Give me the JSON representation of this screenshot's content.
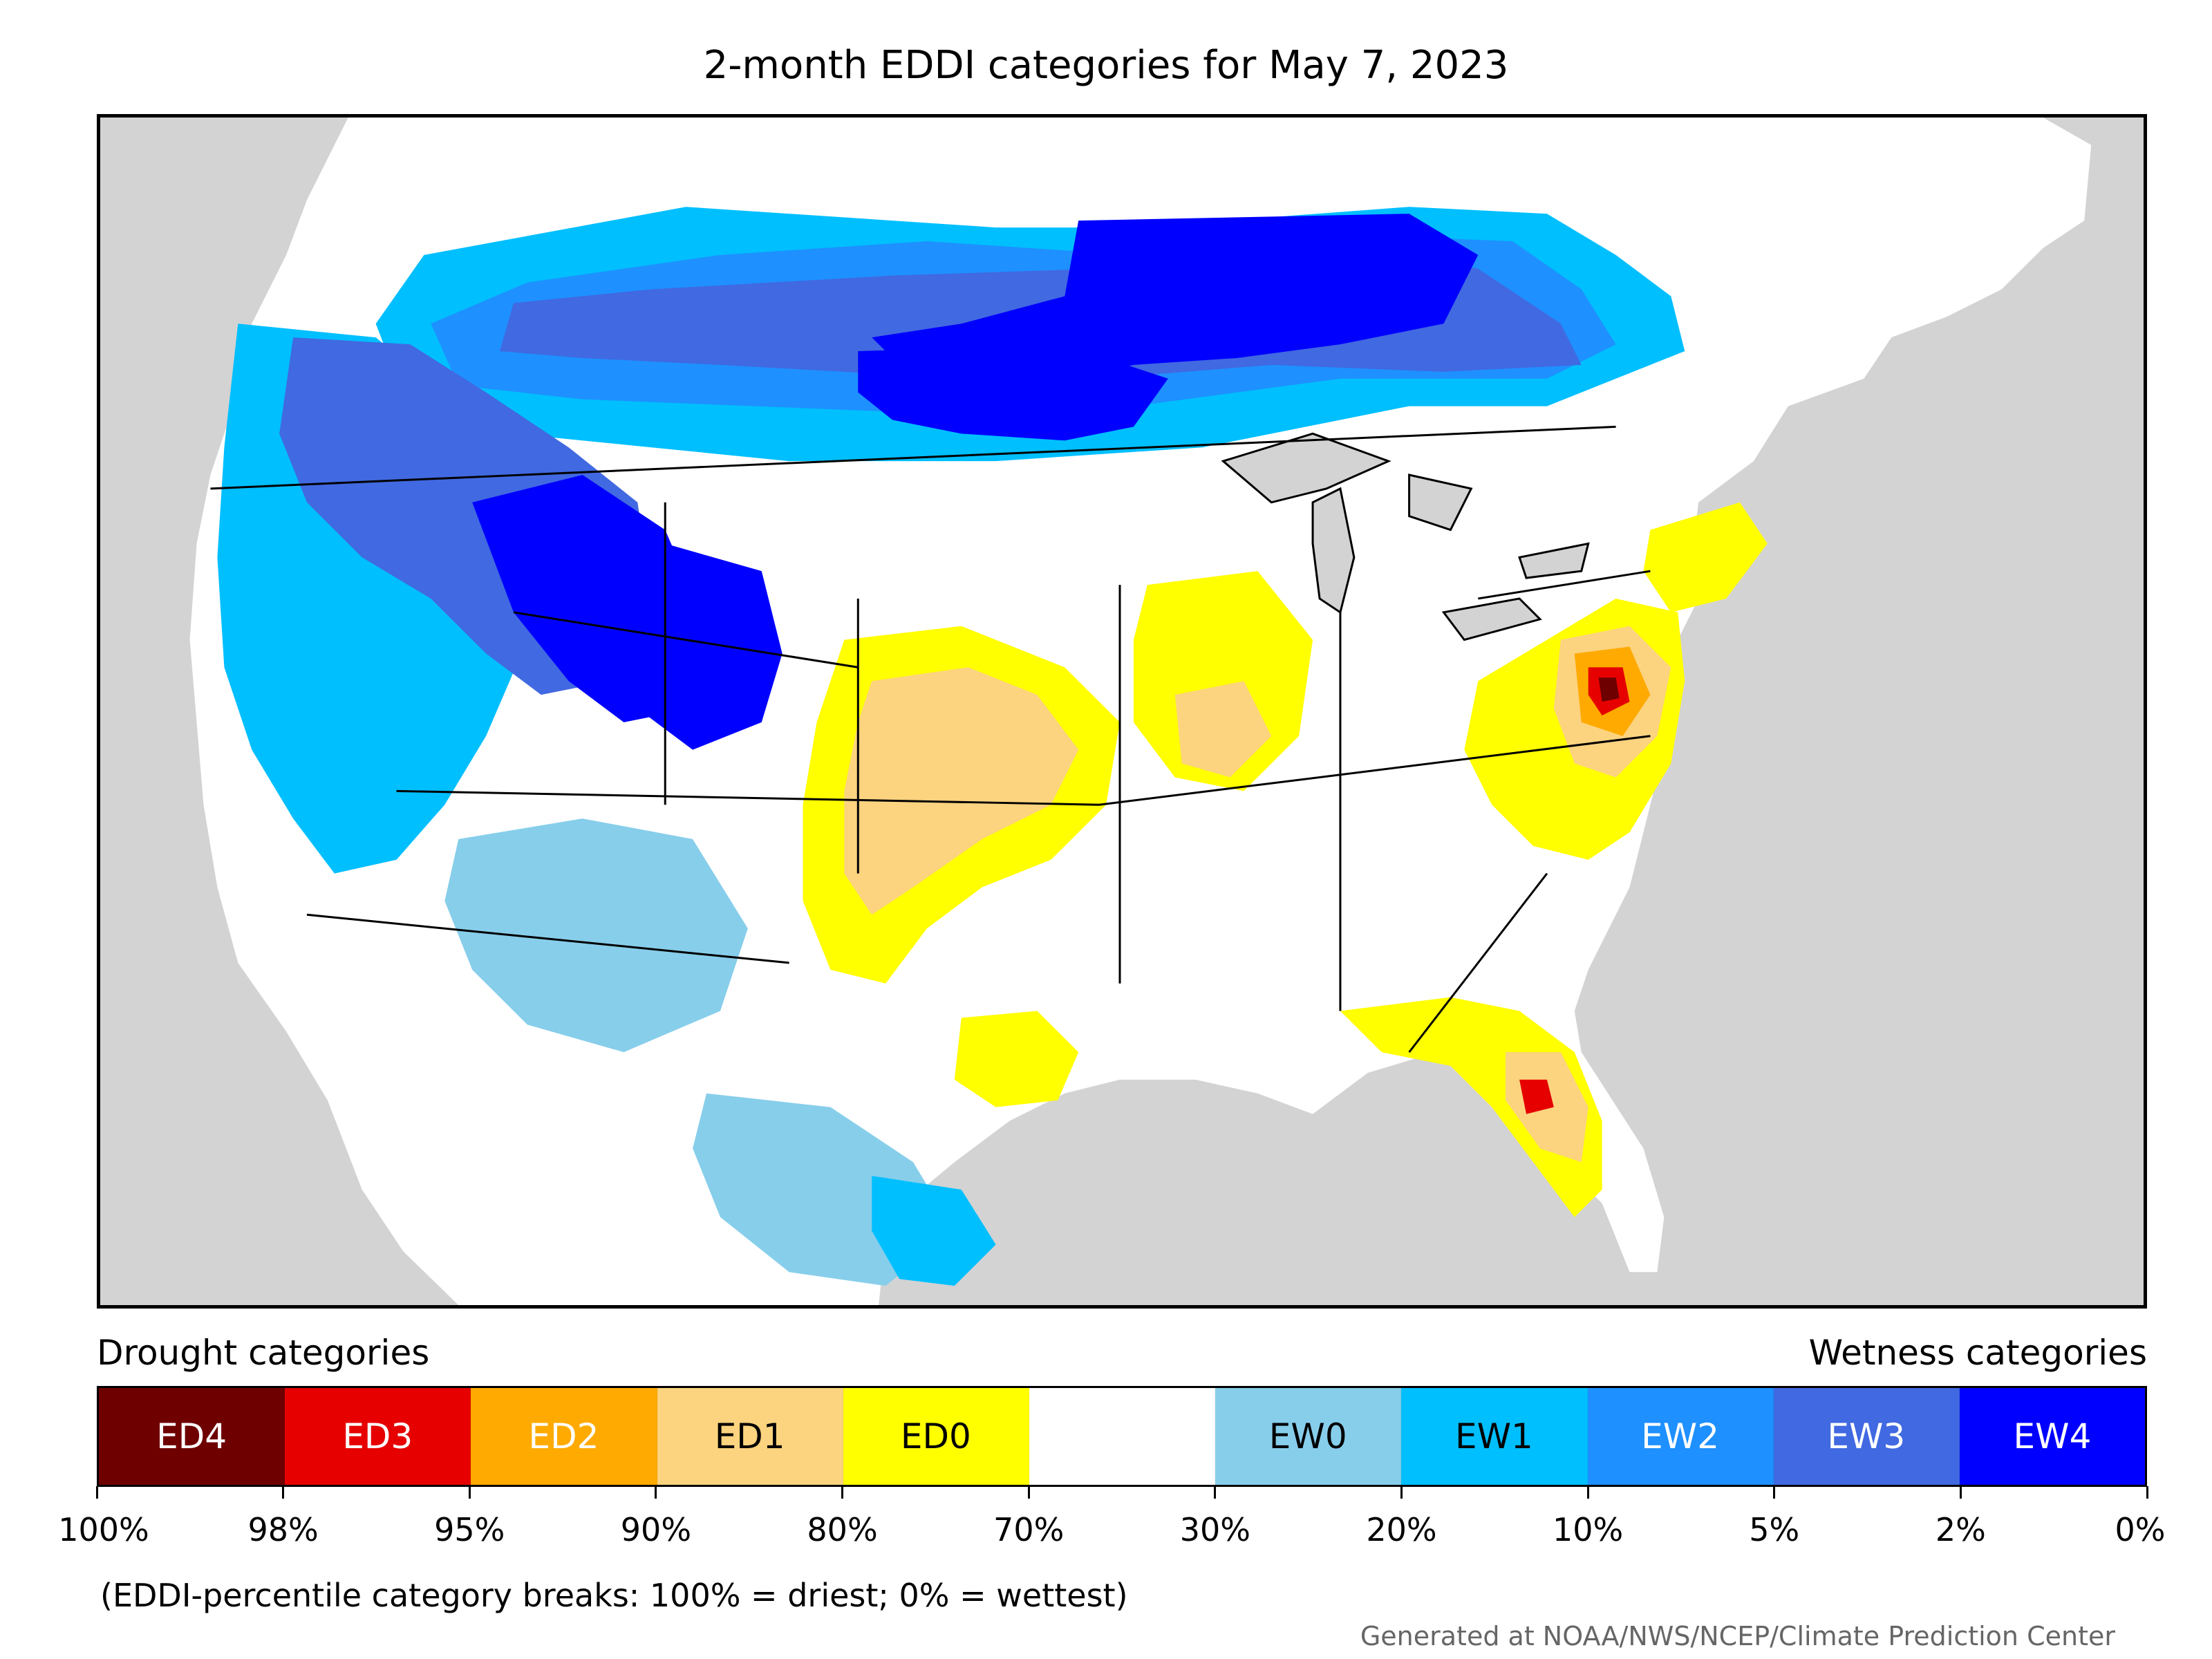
{
  "title": "2-month EDDI categories for May 7, 2023",
  "legend": {
    "drought_heading": "Drought categories",
    "wetness_heading": "Wetness categories",
    "categories": [
      {
        "label": "ED4",
        "color": "#6e0000",
        "text_color": "#ffffff"
      },
      {
        "label": "ED3",
        "color": "#e60000",
        "text_color": "#ffffff"
      },
      {
        "label": "ED2",
        "color": "#ffaa00",
        "text_color": "#ffffff"
      },
      {
        "label": "ED1",
        "color": "#fcd37f",
        "text_color": "#000000"
      },
      {
        "label": "ED0",
        "color": "#ffff00",
        "text_color": "#000000"
      },
      {
        "label": "",
        "color": "#ffffff",
        "text_color": "#000000"
      },
      {
        "label": "EW0",
        "color": "#87ceeb",
        "text_color": "#000000"
      },
      {
        "label": "EW1",
        "color": "#00bfff",
        "text_color": "#000000"
      },
      {
        "label": "EW2",
        "color": "#1e90ff",
        "text_color": "#ffffff"
      },
      {
        "label": "EW3",
        "color": "#4169e1",
        "text_color": "#ffffff"
      },
      {
        "label": "EW4",
        "color": "#0000ff",
        "text_color": "#ffffff"
      }
    ],
    "breaks": [
      "100%",
      "98%",
      "95%",
      "90%",
      "80%",
      "70%",
      "30%",
      "20%",
      "10%",
      "5%",
      "2%",
      "0%"
    ]
  },
  "footnote": "(EDDI-percentile category breaks: 100% = driest; 0% = wettest)",
  "credit": "Generated at NOAA/NWS/NCEP/Climate Prediction Center",
  "colors": {
    "background_water": "#d3d3d3",
    "land_default": "#ffffff",
    "ED3": "#e60000",
    "ED4": "#6e0000",
    "ED2": "#ffaa00",
    "ED1": "#fcd37f",
    "ED0": "#ffff00",
    "EW0": "#87ceeb",
    "EW1": "#00bfff",
    "EW2": "#1e90ff",
    "EW3": "#4169e1",
    "EW4": "#0000ff"
  }
}
